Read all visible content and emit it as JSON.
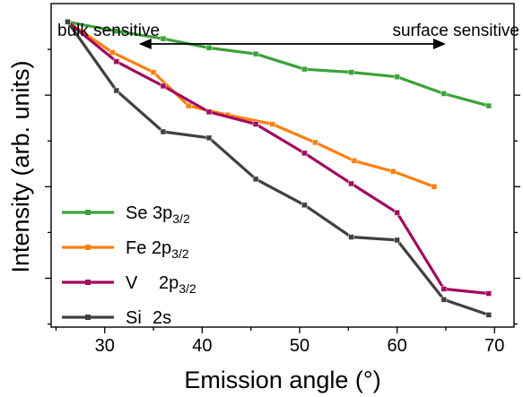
{
  "chart_data": {
    "type": "line",
    "title": "",
    "xlabel": "Emission angle (°)",
    "ylabel": "Intensity (arb. units)",
    "xlim": [
      24.5,
      72
    ],
    "ylim": [
      0,
      1.06
    ],
    "xticks": [
      30,
      40,
      50,
      60,
      70
    ],
    "xtick_labels": [
      "30",
      "40",
      "50",
      "60",
      "70"
    ],
    "yticks": [
      0.16,
      0.46,
      0.76
    ],
    "y_tick_labels_shown": false,
    "grid": false,
    "legend": "bottom-left",
    "annotations": {
      "left": "bulk sensitive",
      "right": "surface sensitive",
      "arrow_from": 33.5,
      "arrow_to": 65
    },
    "series": [
      {
        "name": "Se 3p",
        "name_sub": "3/2",
        "color": "#3aa23a",
        "x": [
          26.2,
          31.2,
          36.0,
          40.7,
          45.5,
          50.5,
          55.3,
          60.0,
          64.8,
          69.4
        ],
        "y": [
          1.0,
          0.97,
          0.945,
          0.915,
          0.895,
          0.845,
          0.835,
          0.82,
          0.765,
          0.725
        ]
      },
      {
        "name": "Fe 2p",
        "name_sub": "3/2",
        "color": "#ff7f0e",
        "x": [
          26.2,
          30.8,
          35.0,
          38.6,
          42.6,
          47.2,
          51.6,
          55.6,
          59.6,
          63.8
        ],
        "y": [
          1.0,
          0.9,
          0.835,
          0.725,
          0.695,
          0.665,
          0.605,
          0.545,
          0.51,
          0.46
        ]
      },
      {
        "name": "V",
        "name_sub": "",
        "name_suffix": "2p",
        "name_suffix_sub": "3/2",
        "color": "#a3095f",
        "x": [
          26.2,
          31.2,
          36.0,
          40.7,
          45.5,
          50.5,
          55.3,
          60.0,
          64.8,
          69.4
        ],
        "y": [
          1.0,
          0.87,
          0.79,
          0.705,
          0.665,
          0.57,
          0.47,
          0.375,
          0.125,
          0.11
        ]
      },
      {
        "name": "Si",
        "name_sub": "",
        "name_suffix": "2s",
        "name_suffix_sub": "",
        "color": "#404040",
        "x": [
          26.2,
          31.2,
          36.0,
          40.7,
          45.5,
          50.5,
          55.3,
          60.0,
          64.8,
          69.4
        ],
        "y": [
          1.0,
          0.775,
          0.64,
          0.62,
          0.485,
          0.4,
          0.295,
          0.285,
          0.09,
          0.04
        ]
      }
    ]
  }
}
